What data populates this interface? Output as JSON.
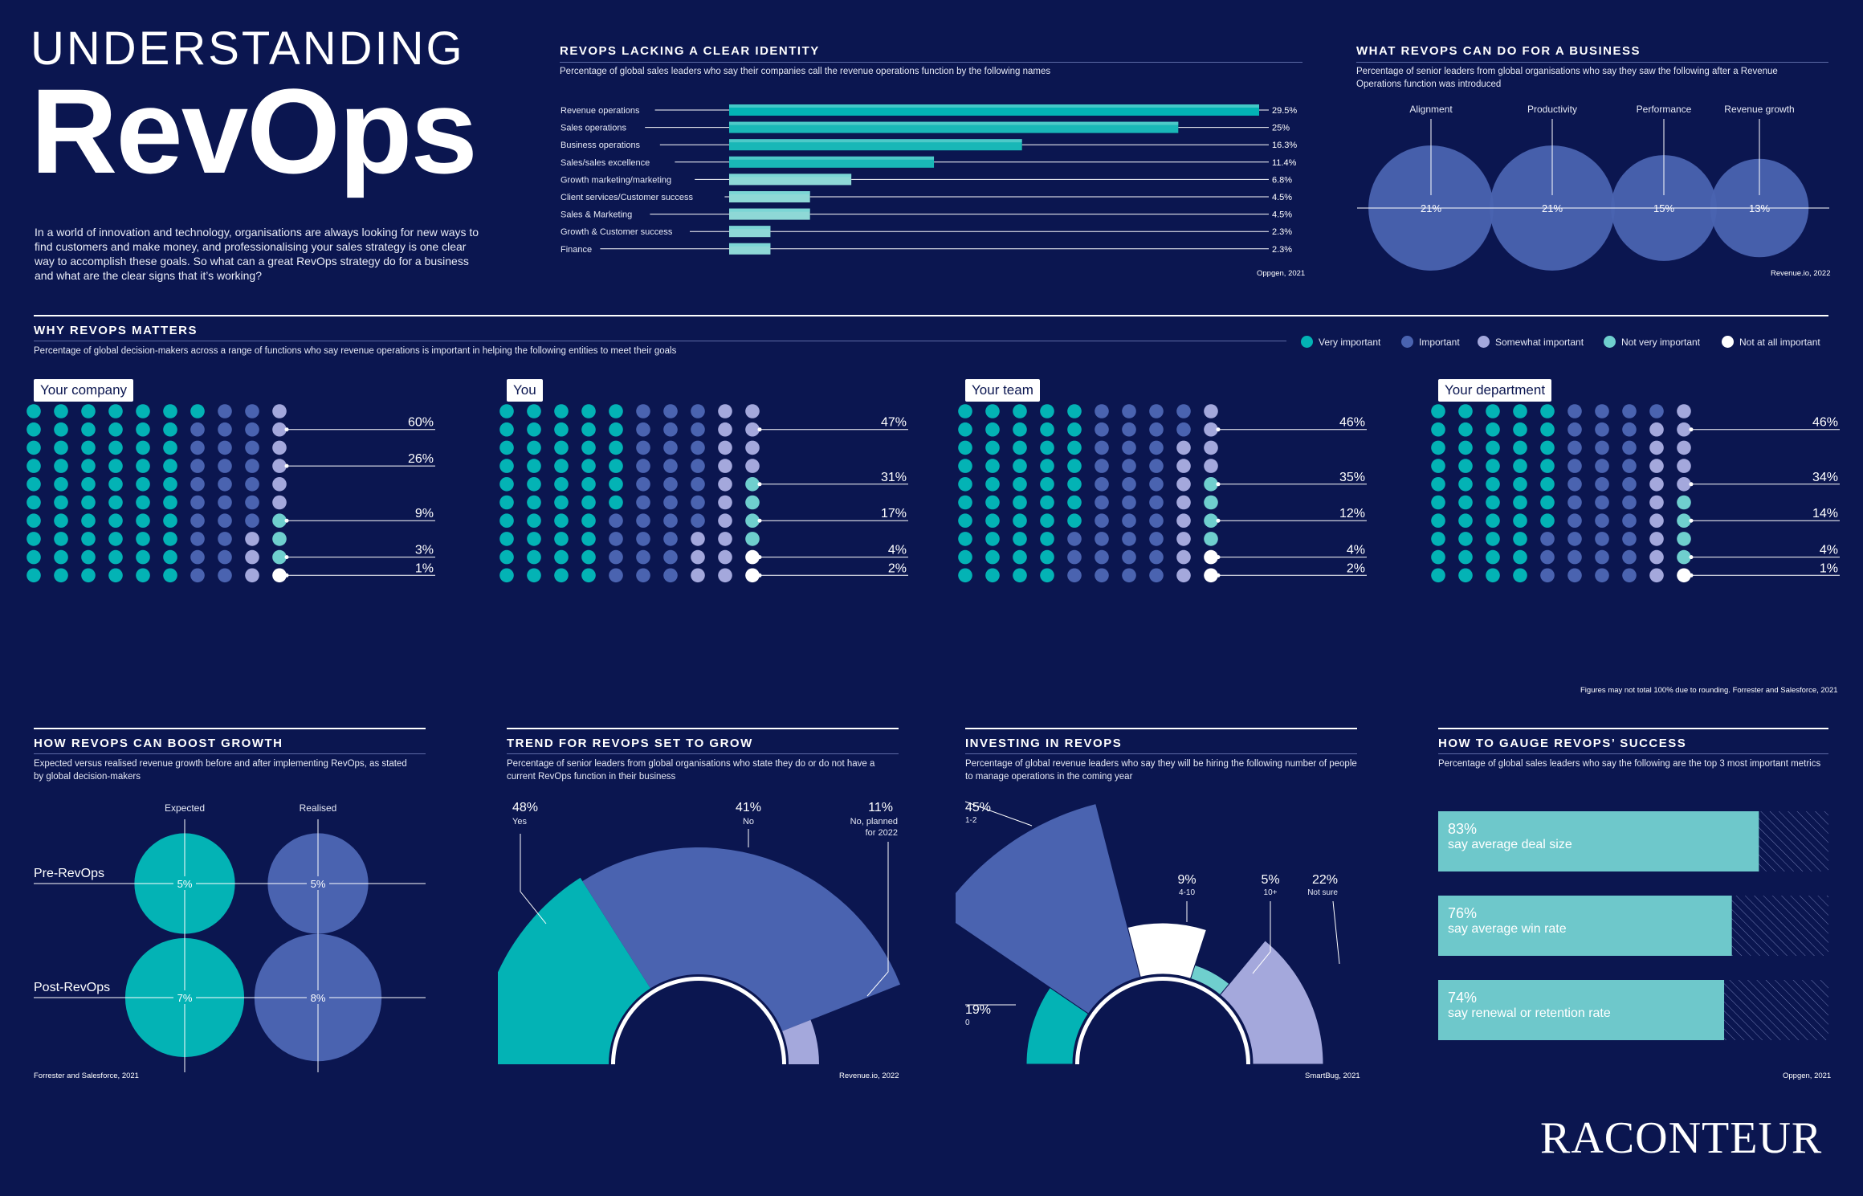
{
  "header": {
    "title_line1": "UNDERSTANDING",
    "title_line2": "RevOps",
    "intro": "In a world of innovation and technology, organisations are always looking for new ways to find customers and make money, and professionalising your sales strategy is one clear way to accomplish these goals. So what can a great RevOps strategy do for a business and what are the clear signs that it’s working?"
  },
  "colors": {
    "background": "#0b1650",
    "very_important": "#03b3b5",
    "important": "#4a63b0",
    "somewhat_important": "#a4a8dc",
    "not_very_important": "#6fcfce",
    "not_at_all_important": "#ffffff"
  },
  "identity": {
    "title": "REVOPS LACKING A CLEAR IDENTITY",
    "subtitle": "Percentage of global sales leaders who say their companies call the revenue operations function by the following names",
    "source": "Oppgen, 2021"
  },
  "business": {
    "title": "WHAT REVOPS CAN DO FOR A BUSINESS",
    "subtitle": "Percentage of senior leaders from global organisations who say they saw the following after a Revenue Operations function was introduced",
    "source": "Revenue.io, 2022"
  },
  "matters": {
    "title": "WHY REVOPS MATTERS",
    "subtitle": "Percentage of global decision-makers across a range of functions who say revenue operations is important in helping the following entities to meet their goals",
    "legend": [
      "Very important",
      "Important",
      "Somewhat important",
      "Not very important",
      "Not at all important"
    ],
    "note": "Figures may not total 100% due to rounding. Forrester and Salesforce, 2021"
  },
  "growth": {
    "title": "HOW REVOPS CAN BOOST GROWTH",
    "subtitle": "Expected versus realised revenue growth before and after implementing RevOps, as stated by global decision-makers",
    "source": "Forrester and Salesforce, 2021"
  },
  "trend": {
    "title": "TREND FOR REVOPS SET TO GROW",
    "subtitle": "Percentage of senior leaders from global organisations who state they do or do not have a current RevOps function in their business",
    "source": "Revenue.io, 2022"
  },
  "investing": {
    "title": "INVESTING IN REVOPS",
    "subtitle": "Percentage of global revenue leaders who say they will be hiring the following number of people to manage operations  in the coming year",
    "source": "SmartBug, 2021"
  },
  "gauge": {
    "title": "HOW TO GAUGE REVOPS’ SUCCESS",
    "subtitle": "Percentage of global sales leaders who say the following are the top 3 most important metrics",
    "source": "Oppgen, 2021"
  },
  "brand": "RACONTEUR",
  "chart_data": [
    {
      "type": "bar",
      "orientation": "horizontal",
      "categories": [
        "Revenue operations",
        "Sales operations",
        "Business operations",
        "Sales/sales excellence",
        "Growth marketing/marketing",
        "Client services/Customer success",
        "Sales & Marketing",
        "Growth & Customer success",
        "Finance"
      ],
      "values": [
        29.5,
        25,
        16.3,
        11.4,
        6.8,
        4.5,
        4.5,
        2.3,
        2.3
      ],
      "labels": [
        "29.5%",
        "25%",
        "16.3%",
        "11.4%",
        "6.8%",
        "4.5%",
        "4.5%",
        "2.3%",
        "2.3%"
      ],
      "title": "REVOPS LACKING A CLEAR IDENTITY"
    },
    {
      "type": "bubble",
      "categories": [
        "Alignment",
        "Productivity",
        "Performance",
        "Revenue growth"
      ],
      "values": [
        21,
        21,
        15,
        13
      ],
      "labels": [
        "21%",
        "21%",
        "15%",
        "13%"
      ],
      "title": "WHAT REVOPS CAN DO FOR A BUSINESS"
    },
    {
      "type": "waffle",
      "title": "WHY REVOPS MATTERS",
      "levels": [
        "Very important",
        "Important",
        "Somewhat important",
        "Not very important",
        "Not at all important"
      ],
      "panels": [
        {
          "name": "Your company",
          "values": [
            60,
            26,
            9,
            3,
            1
          ],
          "labels": [
            "60%",
            "26%",
            "9%",
            "3%",
            "1%"
          ]
        },
        {
          "name": "You",
          "values": [
            47,
            31,
            17,
            4,
            2
          ],
          "labels": [
            "47%",
            "31%",
            "17%",
            "4%",
            "2%"
          ]
        },
        {
          "name": "Your team",
          "values": [
            46,
            35,
            12,
            4,
            2
          ],
          "labels": [
            "46%",
            "35%",
            "12%",
            "4%",
            "2%"
          ]
        },
        {
          "name": "Your department",
          "values": [
            46,
            34,
            14,
            4,
            1
          ],
          "labels": [
            "46%",
            "34%",
            "14%",
            "4%",
            "1%"
          ]
        }
      ]
    },
    {
      "type": "bubble",
      "title": "HOW REVOPS CAN BOOST GROWTH",
      "columns": [
        "Expected",
        "Realised"
      ],
      "rows": [
        "Pre-RevOps",
        "Post-RevOps"
      ],
      "values": [
        [
          5,
          5
        ],
        [
          7,
          8
        ]
      ],
      "labels": [
        [
          "5%",
          "5%"
        ],
        [
          "7%",
          "8%"
        ]
      ]
    },
    {
      "type": "polar",
      "title": "TREND FOR REVOPS SET TO GROW",
      "categories": [
        "Yes",
        "No",
        "No, planned for 2022"
      ],
      "values": [
        48,
        41,
        11
      ],
      "labels": [
        "48%",
        "41%",
        "11%"
      ]
    },
    {
      "type": "polar",
      "title": "INVESTING IN REVOPS",
      "categories": [
        "0",
        "1-2",
        "4-10",
        "10+",
        "Not sure"
      ],
      "values": [
        19,
        45,
        9,
        5,
        22
      ],
      "labels": [
        "19%",
        "45%",
        "9%",
        "5%",
        "22%"
      ]
    },
    {
      "type": "bar",
      "orientation": "horizontal",
      "title": "HOW TO GAUGE REVOPS’ SUCCESS",
      "categories": [
        "say average deal size",
        "say average win rate",
        "say renewal or retention rate"
      ],
      "values": [
        83,
        76,
        74
      ],
      "labels": [
        "83%",
        "76%",
        "74%"
      ]
    }
  ]
}
